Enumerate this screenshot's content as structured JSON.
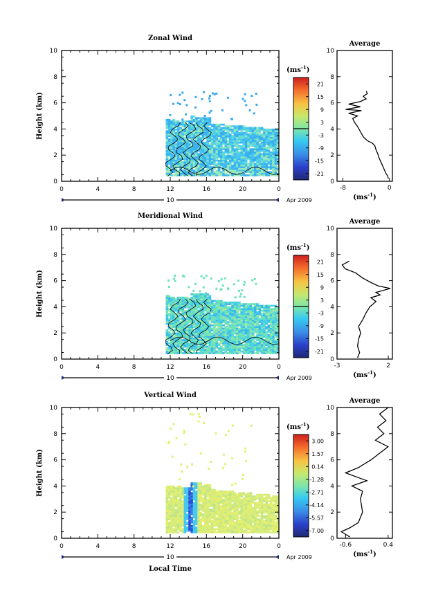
{
  "chart_data": [
    {
      "type": "heatmap",
      "title": "Zonal Wind",
      "ylabel": "Height (km)",
      "unit": "(ms",
      "unit_exp": "-1",
      "xticks": [
        "0",
        "4",
        "8",
        "12",
        "16",
        "20",
        "0"
      ],
      "yticks": [
        "0",
        "2",
        "4",
        "6",
        "8",
        "10"
      ],
      "xlim": [
        0,
        24
      ],
      "ylim": [
        0,
        10
      ],
      "date_day": "10",
      "date_label": "Apr 2009",
      "colorbar": {
        "labels": [
          "21",
          "15",
          "9",
          "3",
          "-3",
          "-9",
          "-15",
          "-21"
        ],
        "zero_line": true
      },
      "data_extent": {
        "time_start": 11.5,
        "time_end": 24,
        "top_km": 4.7,
        "sparse_top_km": 6.9
      },
      "avg": {
        "title": "Average",
        "xlabel": "(ms",
        "xlabel_exp": "-1",
        "xticks": [
          "-8",
          "0"
        ],
        "xlim": [
          -9,
          0.5
        ],
        "yticks": [
          "0",
          "2",
          "4",
          "6",
          "8",
          "10"
        ],
        "profile": [
          [
            -0.2,
            0.2
          ],
          [
            -0.3,
            0.4
          ],
          [
            -0.6,
            0.6
          ],
          [
            -0.9,
            0.9
          ],
          [
            -1.2,
            1.2
          ],
          [
            -1.5,
            1.5
          ],
          [
            -1.8,
            1.8
          ],
          [
            -2.0,
            2.1
          ],
          [
            -2.3,
            2.4
          ],
          [
            -2.5,
            2.7
          ],
          [
            -2.9,
            2.9
          ],
          [
            -3.8,
            3.1
          ],
          [
            -4.5,
            3.4
          ],
          [
            -5.0,
            3.8
          ],
          [
            -5.5,
            4.2
          ],
          [
            -6.0,
            4.5
          ],
          [
            -6.3,
            4.8
          ],
          [
            -5.5,
            5.0
          ],
          [
            -7.0,
            5.2
          ],
          [
            -4.8,
            5.4
          ],
          [
            -7.5,
            5.5
          ],
          [
            -5.0,
            5.7
          ],
          [
            -7.0,
            5.9
          ],
          [
            -5.0,
            6.1
          ],
          [
            -4.0,
            6.3
          ],
          [
            -4.5,
            6.5
          ],
          [
            -3.8,
            6.7
          ],
          [
            -4.0,
            6.9
          ]
        ]
      }
    },
    {
      "type": "heatmap",
      "title": "Meridional Wind",
      "ylabel": "Height (km)",
      "unit": "(ms",
      "unit_exp": "-1",
      "xticks": [
        "0",
        "4",
        "8",
        "12",
        "16",
        "20",
        "0"
      ],
      "yticks": [
        "0",
        "2",
        "4",
        "6",
        "8",
        "10"
      ],
      "xlim": [
        0,
        24
      ],
      "ylim": [
        0,
        10
      ],
      "date_day": "10",
      "date_label": "Apr 2009",
      "colorbar": {
        "labels": [
          "21",
          "15",
          "9",
          "3",
          "-3",
          "-9",
          "-15",
          "-21"
        ],
        "zero_line": true
      },
      "data_extent": {
        "time_start": 11.5,
        "time_end": 24,
        "top_km": 4.8,
        "sparse_top_km": 6.5
      },
      "avg": {
        "title": "Average",
        "xlabel": "(ms",
        "xlabel_exp": "-1",
        "xticks": [
          "-3",
          "2"
        ],
        "xlim": [
          -3,
          2.4
        ],
        "yticks": [
          "0",
          "2",
          "4",
          "6",
          "8",
          "10"
        ],
        "profile": [
          [
            -1.0,
            0.1
          ],
          [
            -0.8,
            0.5
          ],
          [
            -1.0,
            1.0
          ],
          [
            -0.9,
            1.5
          ],
          [
            -0.7,
            2.0
          ],
          [
            -0.9,
            2.5
          ],
          [
            -0.5,
            3.0
          ],
          [
            -0.2,
            3.5
          ],
          [
            0.2,
            4.0
          ],
          [
            0.8,
            4.4
          ],
          [
            0.3,
            4.7
          ],
          [
            1.2,
            4.9
          ],
          [
            0.8,
            5.1
          ],
          [
            2.2,
            5.4
          ],
          [
            1.0,
            5.6
          ],
          [
            0.2,
            5.9
          ],
          [
            -0.5,
            6.2
          ],
          [
            -1.2,
            6.6
          ],
          [
            -2.2,
            6.9
          ],
          [
            -2.5,
            7.2
          ],
          [
            -1.8,
            7.5
          ]
        ]
      }
    },
    {
      "type": "heatmap",
      "title": "Vertical Wind",
      "ylabel": "Height (km)",
      "xlabel": "Local Time",
      "unit": "(ms",
      "unit_exp": "-1",
      "xticks": [
        "0",
        "4",
        "8",
        "12",
        "16",
        "20",
        "0"
      ],
      "yticks": [
        "0",
        "2",
        "4",
        "6",
        "8",
        "10"
      ],
      "xlim": [
        0,
        24
      ],
      "ylim": [
        0,
        10
      ],
      "date_day": "10",
      "date_label": "Apr 2009",
      "colorbar": {
        "labels": [
          "3.00",
          "1.57",
          "0.14",
          "-1.28",
          "-2.71",
          "-4.14",
          "-5.57",
          "-7.00"
        ],
        "zero_line": false
      },
      "data_extent": {
        "time_start": 11.5,
        "time_end": 24,
        "top_km": 4.0,
        "sparse_top_km": 9.8
      },
      "avg": {
        "title": "Average",
        "xlabel": "(ms",
        "xlabel_exp": "-1",
        "xticks": [
          "-0.6",
          "0.4"
        ],
        "xlim": [
          -0.8,
          0.5
        ],
        "yticks": [
          "0",
          "2",
          "4",
          "6",
          "8",
          "10"
        ],
        "profile": [
          [
            -0.5,
            0.1
          ],
          [
            -0.7,
            0.5
          ],
          [
            -0.5,
            0.8
          ],
          [
            -0.3,
            1.2
          ],
          [
            -0.2,
            2.0
          ],
          [
            -0.25,
            3.0
          ],
          [
            -0.2,
            3.6
          ],
          [
            -0.45,
            4.0
          ],
          [
            -0.1,
            4.4
          ],
          [
            -0.6,
            5.0
          ],
          [
            -0.3,
            5.4
          ],
          [
            0.0,
            6.0
          ],
          [
            0.2,
            6.5
          ],
          [
            0.4,
            7.0
          ],
          [
            0.1,
            7.5
          ],
          [
            0.3,
            8.0
          ],
          [
            0.15,
            8.5
          ],
          [
            0.35,
            9.0
          ],
          [
            0.2,
            9.5
          ],
          [
            0.4,
            10.0
          ]
        ]
      }
    }
  ]
}
